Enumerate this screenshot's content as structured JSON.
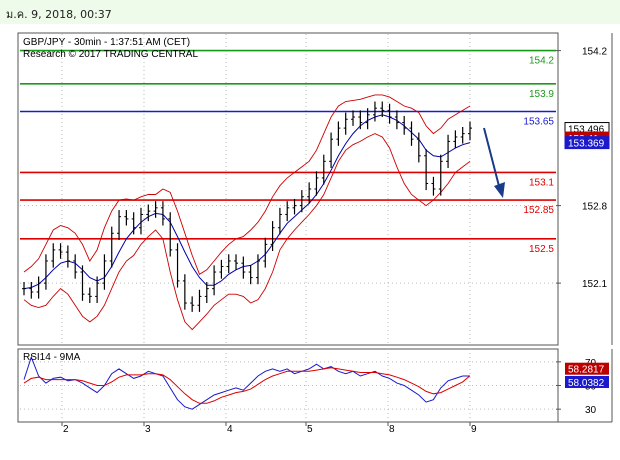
{
  "header": {
    "timestamp": "ม.ค. 9, 2018, 00:37"
  },
  "colors": {
    "green": "#1a9a1a",
    "blue": "#1a1acc",
    "red": "#dd0000",
    "darkred": "#bb0000",
    "price": "#000000",
    "band": "#cc0000",
    "ma": "#0000aa",
    "arrow": "#1a3a8a"
  },
  "chart_data": [
    {
      "type": "line",
      "title": "GBP/JPY - 30min - 1:37:51 AM (CET)",
      "subtitle": "Research © 2017 TRADING CENTRAL",
      "ylim": [
        151.55,
        154.35
      ],
      "yticks": [
        154.2,
        152.8,
        152.1
      ],
      "xticks": [
        "2",
        "3",
        "4",
        "5",
        "8",
        "9"
      ],
      "levels": [
        {
          "value": 154.2,
          "label": "154.2",
          "color": "#1a9a1a"
        },
        {
          "value": 153.9,
          "label": "153.9",
          "color": "#1a9a1a"
        },
        {
          "value": 153.65,
          "label": "153.65",
          "color": "#1a1acc"
        },
        {
          "value": 153.1,
          "label": "153.1",
          "color": "#dd0000"
        },
        {
          "value": 152.85,
          "label": "152.85",
          "color": "#dd0000"
        },
        {
          "value": 152.5,
          "label": "152.5",
          "color": "#dd0000"
        }
      ],
      "markers": [
        {
          "label": "153.496",
          "value": 153.496,
          "bg": "#ffffff",
          "fg": "#000000"
        },
        {
          "label": "153.41",
          "value": 153.41,
          "bg": "#bb0000",
          "fg": "#ffffff"
        },
        {
          "label": "153.369",
          "value": 153.369,
          "bg": "#1a1acc",
          "fg": "#ffffff"
        }
      ],
      "price": [
        152.05,
        152.02,
        152.1,
        152.3,
        152.4,
        152.38,
        152.3,
        152.2,
        152.0,
        151.98,
        152.1,
        152.3,
        152.55,
        152.7,
        152.68,
        152.6,
        152.72,
        152.75,
        152.78,
        152.68,
        152.4,
        152.12,
        151.92,
        151.9,
        151.98,
        152.05,
        152.2,
        152.25,
        152.3,
        152.28,
        152.2,
        152.15,
        152.3,
        152.45,
        152.6,
        152.72,
        152.78,
        152.8,
        152.88,
        152.95,
        153.05,
        153.2,
        153.4,
        153.5,
        153.58,
        153.6,
        153.55,
        153.62,
        153.68,
        153.66,
        153.6,
        153.55,
        153.5,
        153.4,
        153.25,
        153.0,
        152.95,
        153.2,
        153.38,
        153.42,
        153.45,
        153.5
      ],
      "upper_band": [
        152.2,
        152.25,
        152.32,
        152.45,
        152.58,
        152.62,
        152.6,
        152.55,
        152.45,
        152.3,
        152.4,
        152.6,
        152.75,
        152.85,
        152.86,
        152.85,
        152.88,
        152.9,
        152.9,
        152.95,
        152.92,
        152.75,
        152.55,
        152.35,
        152.18,
        152.22,
        152.3,
        152.38,
        152.45,
        152.5,
        152.52,
        152.58,
        152.65,
        152.75,
        152.88,
        152.98,
        153.05,
        153.1,
        153.15,
        153.2,
        153.3,
        153.45,
        153.6,
        153.7,
        153.74,
        153.75,
        153.76,
        153.78,
        153.8,
        153.8,
        153.78,
        153.74,
        153.7,
        153.68,
        153.64,
        153.52,
        153.45,
        153.5,
        153.58,
        153.62,
        153.66,
        153.7
      ],
      "lower_band": [
        151.95,
        151.9,
        151.88,
        151.9,
        151.98,
        152.05,
        152.0,
        151.9,
        151.8,
        151.75,
        151.8,
        151.9,
        152.05,
        152.2,
        152.3,
        152.35,
        152.45,
        152.52,
        152.58,
        152.5,
        152.2,
        151.95,
        151.75,
        151.68,
        151.75,
        151.82,
        151.9,
        151.95,
        152.0,
        152.0,
        151.98,
        151.92,
        151.95,
        152.05,
        152.2,
        152.4,
        152.5,
        152.58,
        152.65,
        152.72,
        152.8,
        152.9,
        153.05,
        153.2,
        153.3,
        153.35,
        153.38,
        153.42,
        153.45,
        153.42,
        153.32,
        153.15,
        153.0,
        152.9,
        152.85,
        152.8,
        152.85,
        152.92,
        153.0,
        153.1,
        153.15,
        153.2
      ],
      "moving_average": [
        152.05,
        152.06,
        152.09,
        152.15,
        152.22,
        152.28,
        152.3,
        152.28,
        152.22,
        152.15,
        152.12,
        152.15,
        152.25,
        152.38,
        152.5,
        152.58,
        152.65,
        152.7,
        152.73,
        152.72,
        152.65,
        152.52,
        152.38,
        152.25,
        152.15,
        152.08,
        152.08,
        152.12,
        152.18,
        152.22,
        152.25,
        152.26,
        152.3,
        152.36,
        152.45,
        152.55,
        152.64,
        152.7,
        152.76,
        152.82,
        152.9,
        153.0,
        153.12,
        153.25,
        153.36,
        153.45,
        153.52,
        153.57,
        153.6,
        153.62,
        153.6,
        153.57,
        153.52,
        153.46,
        153.4,
        153.3,
        153.25,
        153.24,
        153.28,
        153.32,
        153.35,
        153.369
      ]
    },
    {
      "type": "line",
      "title": "RSI14 - 9MA",
      "ylim": [
        20,
        80
      ],
      "yticks": [
        70,
        50,
        30
      ],
      "markers": [
        {
          "label": "58.2817",
          "value": 58.2817,
          "bg": "#bb0000",
          "fg": "#ffffff"
        },
        {
          "label": "58.0382",
          "value": 58.0382,
          "bg": "#1a1acc",
          "fg": "#ffffff"
        }
      ],
      "rsi": [
        55,
        74,
        58,
        52,
        56,
        57,
        54,
        55,
        52,
        48,
        44,
        50,
        60,
        64,
        60,
        56,
        58,
        62,
        60,
        58,
        48,
        38,
        32,
        30,
        34,
        38,
        42,
        44,
        46,
        48,
        46,
        52,
        58,
        62,
        64,
        62,
        64,
        60,
        62,
        64,
        68,
        64,
        66,
        62,
        60,
        62,
        58,
        60,
        62,
        58,
        56,
        52,
        50,
        46,
        42,
        36,
        38,
        48,
        54,
        56,
        58,
        58
      ],
      "ma": [
        52,
        56,
        57,
        55,
        55,
        55,
        55,
        55,
        54,
        52,
        50,
        50,
        53,
        57,
        59,
        59,
        59,
        60,
        60,
        59,
        55,
        49,
        43,
        38,
        35,
        35,
        37,
        40,
        42,
        44,
        45,
        47,
        51,
        55,
        58,
        60,
        62,
        62,
        62,
        62,
        63,
        64,
        65,
        64,
        63,
        62,
        61,
        61,
        61,
        60,
        59,
        57,
        55,
        52,
        49,
        45,
        43,
        44,
        47,
        50,
        53,
        58.28
      ]
    }
  ]
}
